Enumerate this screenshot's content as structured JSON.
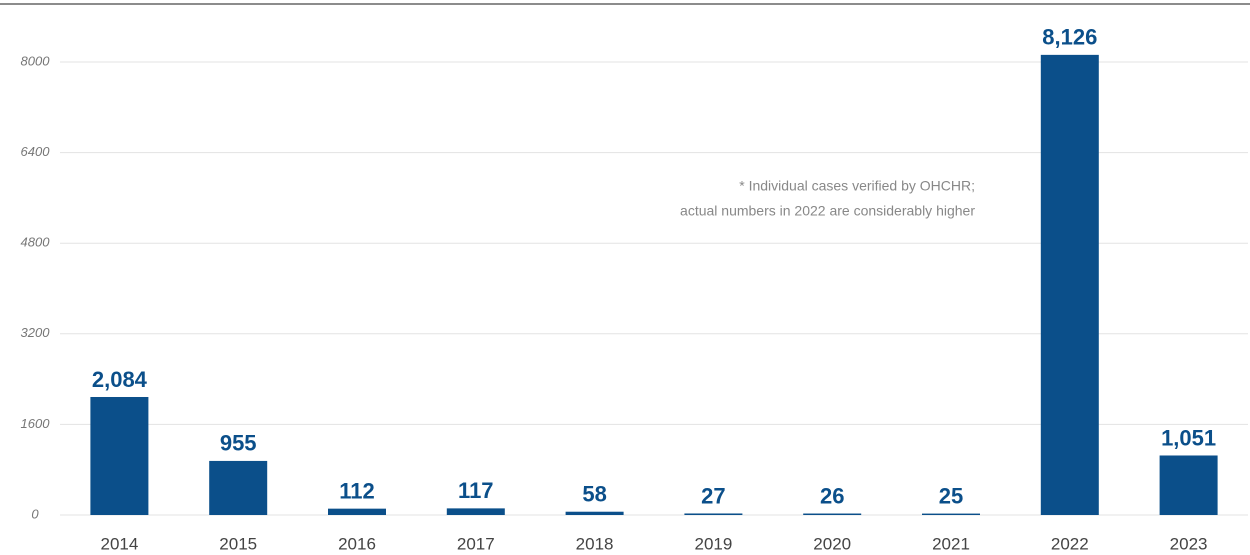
{
  "chart_data": {
    "type": "bar",
    "categories": [
      "2014",
      "2015",
      "2016",
      "2017",
      "2018",
      "2019",
      "2020",
      "2021",
      "2022",
      "2023"
    ],
    "values": [
      2084,
      955,
      112,
      117,
      58,
      27,
      26,
      25,
      8126,
      1051
    ],
    "value_labels": [
      "2,084",
      "955",
      "112",
      "117",
      "58",
      "27",
      "26",
      "25",
      "8,126",
      "1,051"
    ],
    "color": "#0b4f8a",
    "ylim": [
      0,
      8000
    ],
    "yticks": [
      0,
      1600,
      3200,
      4800,
      6400,
      8000
    ],
    "grid": true,
    "annotations": [
      "* Individual cases verified by OHCHR;",
      "actual numbers in 2022 are considerably higher"
    ]
  }
}
